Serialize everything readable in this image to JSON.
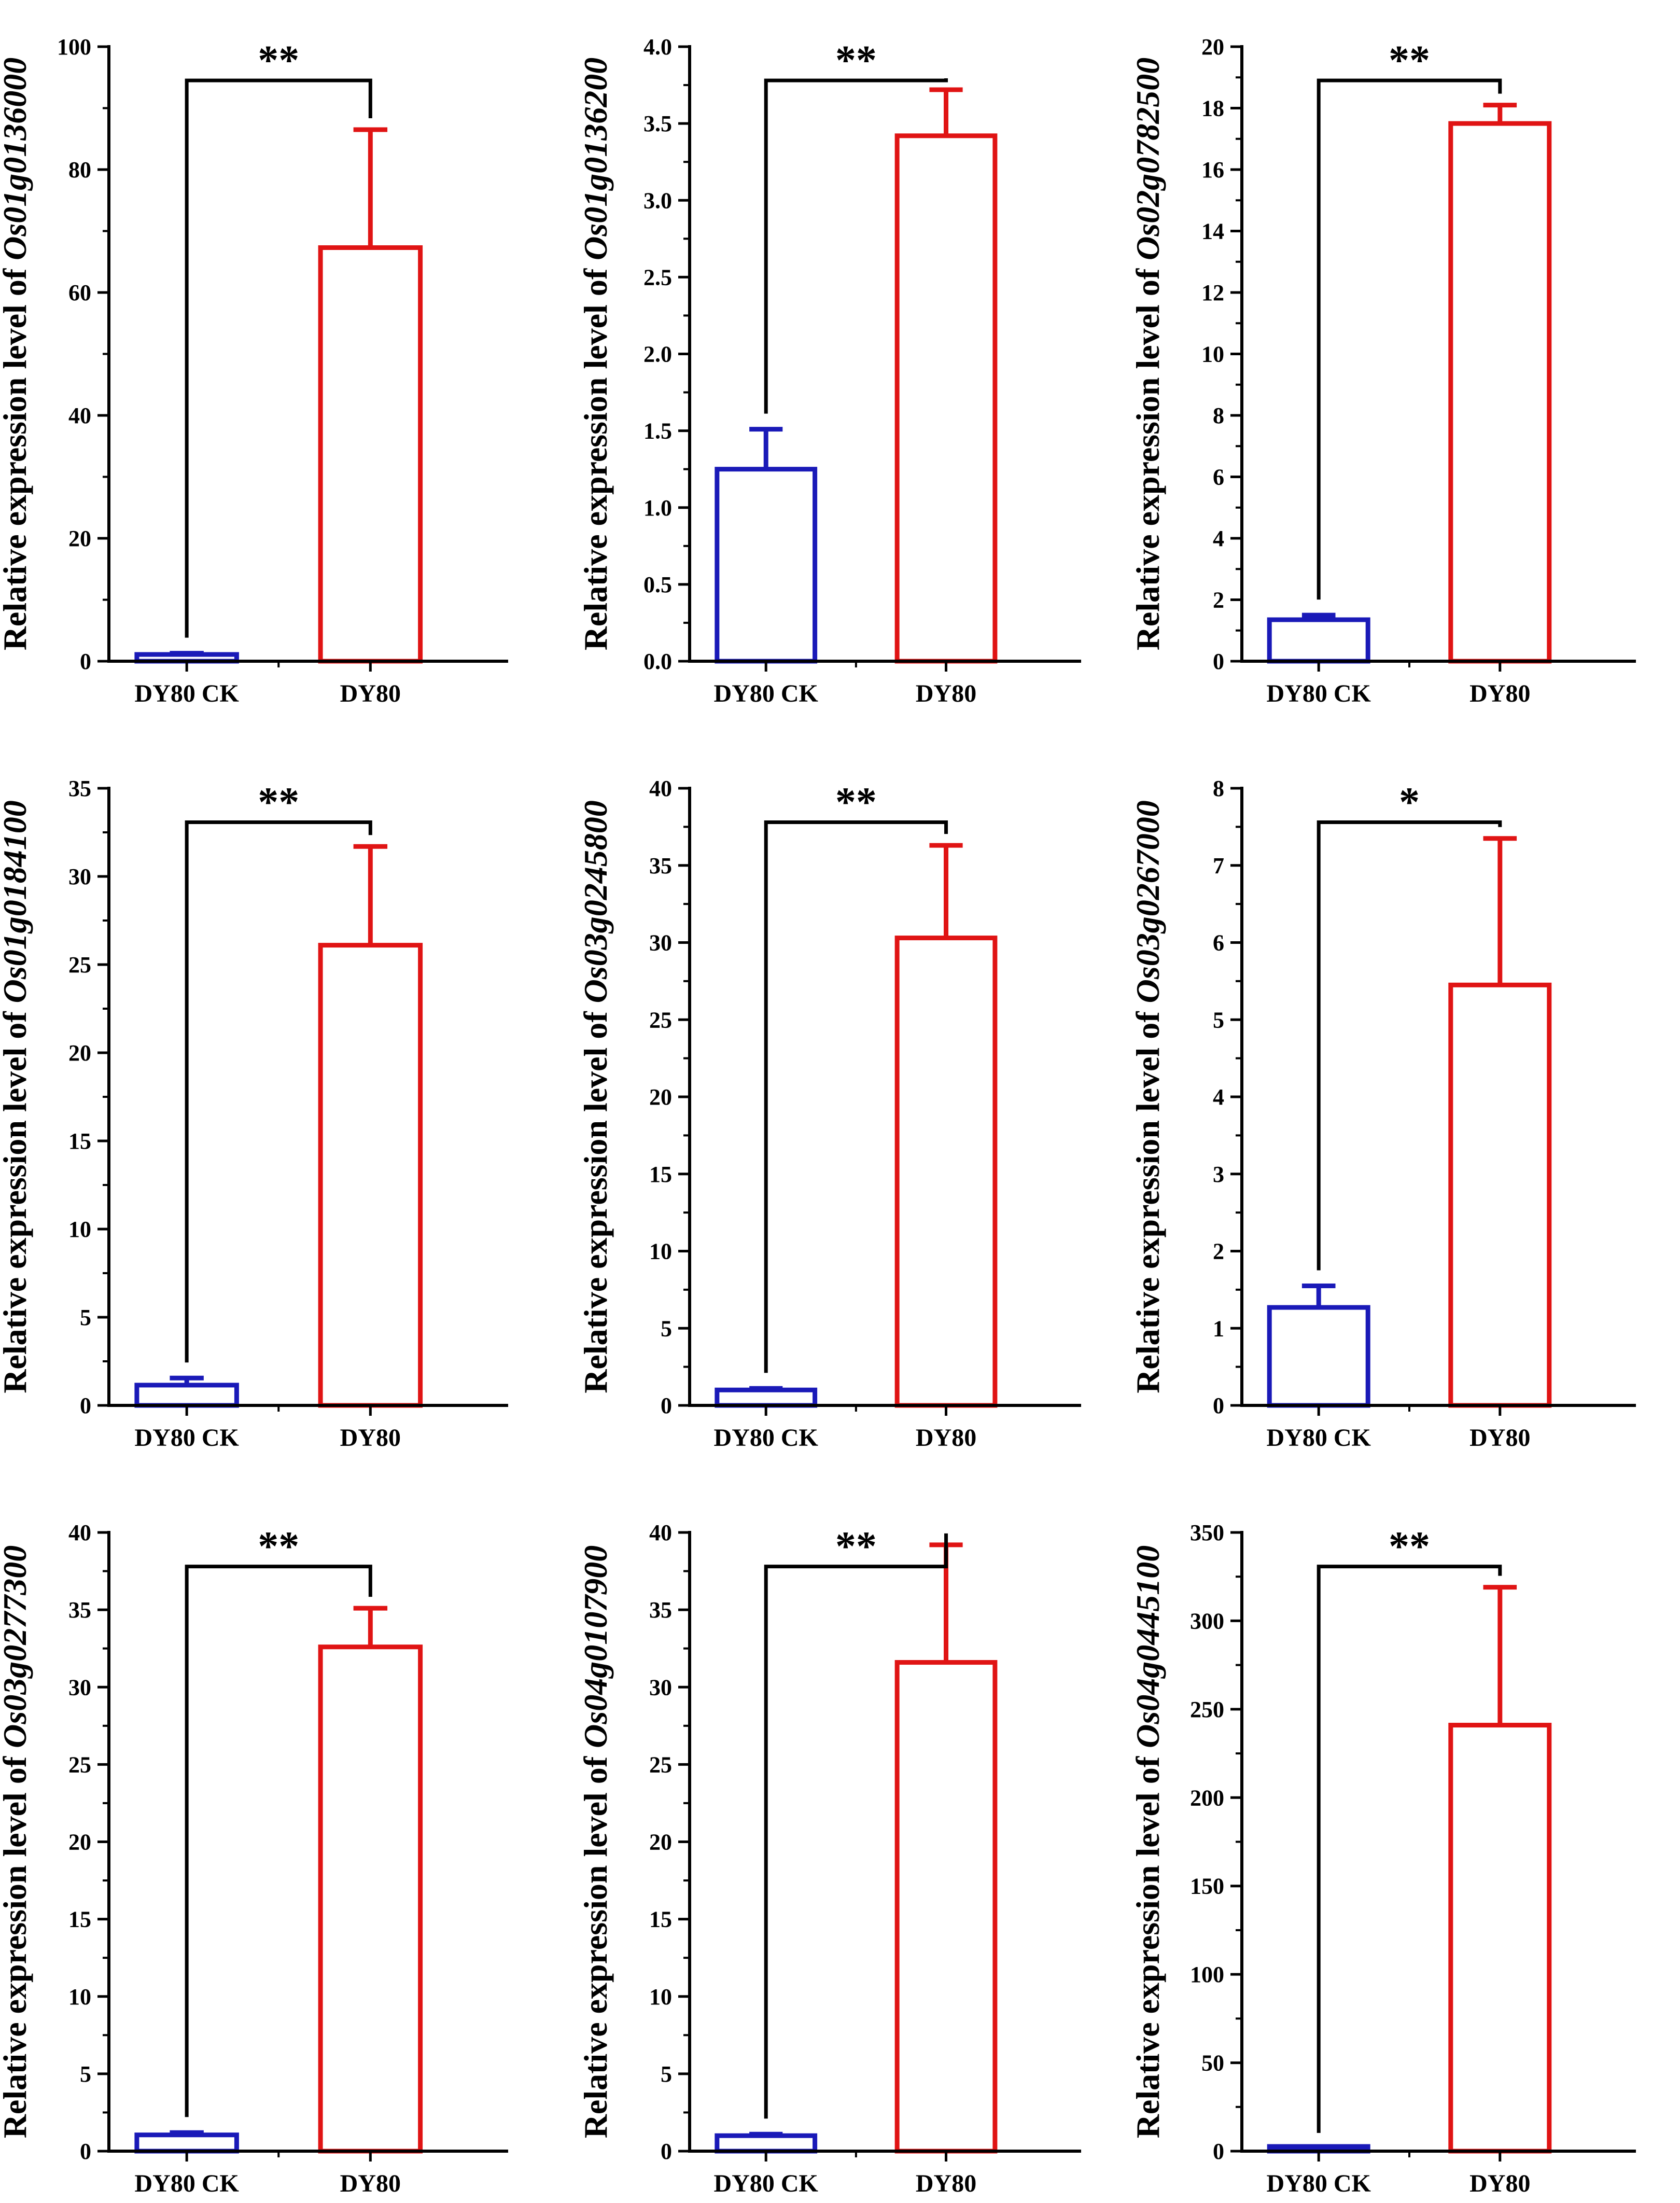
{
  "figure": {
    "ylabel_prefix": "Relative expression level of ",
    "colors": {
      "control": "#1a1ab8",
      "treatment": "#e01414",
      "axis": "#000000"
    }
  },
  "chart_data": [
    {
      "type": "bar",
      "gene": "Os01g0136000",
      "categories": [
        "DY80 CK",
        "DY80"
      ],
      "values": [
        1.1,
        67.3
      ],
      "errors": [
        0.2,
        19.2
      ],
      "significance": "**",
      "ylim": [
        0,
        100
      ],
      "yticks": [
        0,
        20,
        40,
        60,
        80,
        100
      ],
      "tick_labels": [
        "0",
        "20",
        "40",
        "60",
        "80",
        "100"
      ]
    },
    {
      "type": "bar",
      "gene": "Os01g0136200",
      "categories": [
        "DY80 CK",
        "DY80"
      ],
      "values": [
        1.25,
        3.42
      ],
      "errors": [
        0.26,
        0.3
      ],
      "significance": "**",
      "ylim": [
        0,
        4.0
      ],
      "yticks": [
        0,
        0.5,
        1.0,
        1.5,
        2.0,
        2.5,
        3.0,
        3.5,
        4.0
      ],
      "tick_labels": [
        "0.0",
        "0.5",
        "1.0",
        "1.5",
        "2.0",
        "2.5",
        "3.0",
        "3.5",
        "4.0"
      ]
    },
    {
      "type": "bar",
      "gene": "Os02g0782500",
      "categories": [
        "DY80 CK",
        "DY80"
      ],
      "values": [
        1.35,
        17.5
      ],
      "errors": [
        0.15,
        0.6
      ],
      "significance": "**",
      "ylim": [
        0,
        20
      ],
      "yticks": [
        0,
        2,
        4,
        6,
        8,
        10,
        12,
        14,
        16,
        18,
        20
      ],
      "tick_labels": [
        "0",
        "2",
        "4",
        "6",
        "8",
        "10",
        "12",
        "14",
        "16",
        "18",
        "20"
      ]
    },
    {
      "type": "bar",
      "gene": "Os01g0184100",
      "categories": [
        "DY80 CK",
        "DY80"
      ],
      "values": [
        1.15,
        26.1
      ],
      "errors": [
        0.4,
        5.6
      ],
      "significance": "**",
      "ylim": [
        0,
        35
      ],
      "yticks": [
        0,
        5,
        10,
        15,
        20,
        25,
        30,
        35
      ],
      "tick_labels": [
        "0",
        "5",
        "10",
        "15",
        "20",
        "25",
        "30",
        "35"
      ]
    },
    {
      "type": "bar",
      "gene": "Os03g0245800",
      "categories": [
        "DY80 CK",
        "DY80"
      ],
      "values": [
        1.0,
        30.3
      ],
      "errors": [
        0.1,
        6.0
      ],
      "significance": "**",
      "ylim": [
        0,
        40
      ],
      "yticks": [
        0,
        5,
        10,
        15,
        20,
        25,
        30,
        35,
        40
      ],
      "tick_labels": [
        "0",
        "5",
        "10",
        "15",
        "20",
        "25",
        "30",
        "35",
        "40"
      ]
    },
    {
      "type": "bar",
      "gene": "Os03g0267000",
      "categories": [
        "DY80 CK",
        "DY80"
      ],
      "values": [
        1.27,
        5.45
      ],
      "errors": [
        0.28,
        1.9
      ],
      "significance": "*",
      "ylim": [
        0,
        8
      ],
      "yticks": [
        0,
        1,
        2,
        3,
        4,
        5,
        6,
        7,
        8
      ],
      "tick_labels": [
        "0",
        "1",
        "2",
        "3",
        "4",
        "5",
        "6",
        "7",
        "8"
      ]
    },
    {
      "type": "bar",
      "gene": "Os03g0277300",
      "categories": [
        "DY80 CK",
        "DY80"
      ],
      "values": [
        1.05,
        32.6
      ],
      "errors": [
        0.15,
        2.5
      ],
      "significance": "**",
      "ylim": [
        0,
        40
      ],
      "yticks": [
        0,
        5,
        10,
        15,
        20,
        25,
        30,
        35,
        40
      ],
      "tick_labels": [
        "0",
        "5",
        "10",
        "15",
        "20",
        "25",
        "30",
        "35",
        "40"
      ]
    },
    {
      "type": "bar",
      "gene": "Os04g0107900",
      "categories": [
        "DY80 CK",
        "DY80"
      ],
      "values": [
        1.0,
        31.6
      ],
      "errors": [
        0.1,
        7.6
      ],
      "significance": "**",
      "ylim": [
        0,
        40
      ],
      "yticks": [
        0,
        5,
        10,
        15,
        20,
        25,
        30,
        35,
        40
      ],
      "tick_labels": [
        "0",
        "5",
        "10",
        "15",
        "20",
        "25",
        "30",
        "35",
        "40"
      ]
    },
    {
      "type": "bar",
      "gene": "Os04g0445100",
      "categories": [
        "DY80 CK",
        "DY80"
      ],
      "values": [
        1.0,
        241.0
      ],
      "errors": [
        0.5,
        78.0
      ],
      "significance": "**",
      "ylim": [
        0,
        350
      ],
      "yticks": [
        0,
        50,
        100,
        150,
        200,
        250,
        300,
        350
      ],
      "tick_labels": [
        "0",
        "50",
        "100",
        "150",
        "200",
        "250",
        "300",
        "350"
      ]
    }
  ]
}
